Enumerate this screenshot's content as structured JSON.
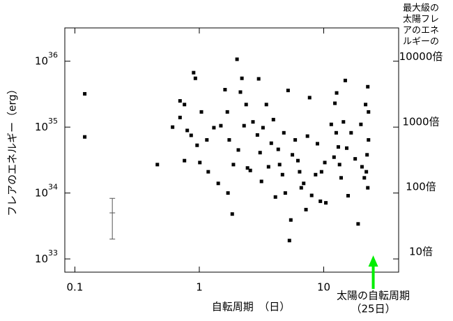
{
  "chart_data": {
    "type": "scatter",
    "x_label": "自転周期　（日）",
    "y_label": "フレアのエネルギー（erg）",
    "y2_label": [
      "最大級の",
      "太陽フレ",
      "アのエネ",
      "ルギーの"
    ],
    "log_x": true,
    "log_y": true,
    "xlim": [
      0.083,
      40
    ],
    "ylim": [
      6.3e+32,
      3.2e+36
    ],
    "xticks": [
      0.1,
      1,
      10
    ],
    "yticks": [
      {
        "value": 1e+33,
        "label": "10",
        "exponent": "33"
      },
      {
        "value": 1e+34,
        "label": "10",
        "exponent": "34"
      },
      {
        "value": 1e+35,
        "label": "10",
        "exponent": "35"
      },
      {
        "value": 1e+36,
        "label": "10",
        "exponent": "36"
      }
    ],
    "y2lim": [
      4.9,
      28000
    ],
    "y2ticks": [
      {
        "value": 10,
        "label": "10倍"
      },
      {
        "value": 100,
        "label": "100倍"
      },
      {
        "value": 1000,
        "label": "1000倍"
      },
      {
        "value": 10000,
        "label": "10000倍"
      }
    ],
    "series": [
      {
        "color": "#000000",
        "x": [
          0.12,
          0.12,
          0.46,
          0.61,
          0.7,
          0.7,
          0.76,
          0.9,
          0.93,
          0.96,
          1.04,
          1.18,
          1.42,
          1.61,
          1.68,
          1.7,
          1.84,
          2.01,
          2.2,
          2.29,
          2.44,
          3.0,
          3.16,
          3.46,
          3.79,
          4.09,
          4.42,
          4.78,
          5.17,
          5.3,
          5.44,
          6.2,
          6.6,
          7.2,
          7.7,
          8.6,
          9.4,
          10.2,
          10.4,
          12.3,
          12.7,
          13.1,
          13.8,
          14.9,
          15.7,
          18.9,
          19.9,
          21.7,
          22.6,
          22.9,
          22.6,
          0.76,
          0.8,
          0.86,
          1.01,
          1.15,
          1.31,
          1.49,
          1.74,
          1.88,
          2.06,
          2.14,
          2.38,
          2.57,
          2.7,
          2.93,
          3.08,
          3.25,
          3.6,
          3.94,
          4.31,
          4.66,
          4.91,
          5.6,
          5.9,
          6.4,
          6.9,
          7.4,
          8.0,
          8.9,
          9.6,
          11.5,
          12.1,
          12.6,
          13.4,
          14.4,
          15.3,
          16.6,
          17.9,
          20.3,
          22.0,
          22.9,
          22.3,
          21.2
        ],
        "values": [
          3.2e+35,
          7.1e+34,
          2.7e+34,
          1e+35,
          2.5e+35,
          1.4e+35,
          3.1e+34,
          6.7e+35,
          5.5e+35,
          5.3e+34,
          1.7e+35,
          2.1e+34,
          1.4e+34,
          3.7e+35,
          1.7e+35,
          1e+34,
          4.8e+33,
          1.07e+36,
          5.5e+35,
          1.05e+35,
          2.4e+34,
          5.4e+35,
          1.5e+34,
          2.2e+35,
          5.7e+34,
          8.7e+33,
          2.7e+34,
          8.2e+34,
          3.6e+35,
          1.9e+33,
          3.9e+33,
          3.1e+34,
          1.2e+34,
          5.6e+33,
          2.8e+35,
          1.9e+34,
          7.5e+33,
          2.9e+34,
          7.1e+33,
          2.3e+35,
          3.3e+35,
          5e+34,
          1.7e+34,
          5.1e+35,
          9.1e+33,
          3.4e+33,
          1.1e+35,
          2.2e+35,
          4.1e+35,
          6.4e+34,
          1.2e+34,
          2.2e+35,
          8.9e+34,
          7.5e+34,
          2.9e+34,
          6.4e+34,
          9.8e+34,
          1.05e+35,
          6.4e+34,
          2.7e+34,
          4.5e+34,
          3.4e+35,
          2.2e+35,
          2.2e+34,
          1.2e+35,
          7.6e+34,
          4.1e+34,
          9.8e+34,
          2.5e+34,
          1.3e+35,
          4.6e+34,
          1.9e+34,
          1e+34,
          3.8e+34,
          6.4e+34,
          2.1e+34,
          1.4e+34,
          7.3e+34,
          9.2e+33,
          5.6e+34,
          2.1e+34,
          1.1e+35,
          3.5e+34,
          8.2e+34,
          2.7e+34,
          1.2e+35,
          4.8e+34,
          8.2e+34,
          3.3e+34,
          2.5e+34,
          2.1e+34,
          1.7e+35,
          3.8e+34,
          1.7e+34
        ]
      }
    ],
    "error_bar": {
      "x": 0.2,
      "y": 5e+33,
      "low": 2e+33,
      "high": 8.3e+33,
      "color": "#555555"
    },
    "annotation": {
      "x": 25,
      "text": [
        "太陽の自転周期",
        "（25日）"
      ],
      "color": "#00ee00"
    }
  }
}
